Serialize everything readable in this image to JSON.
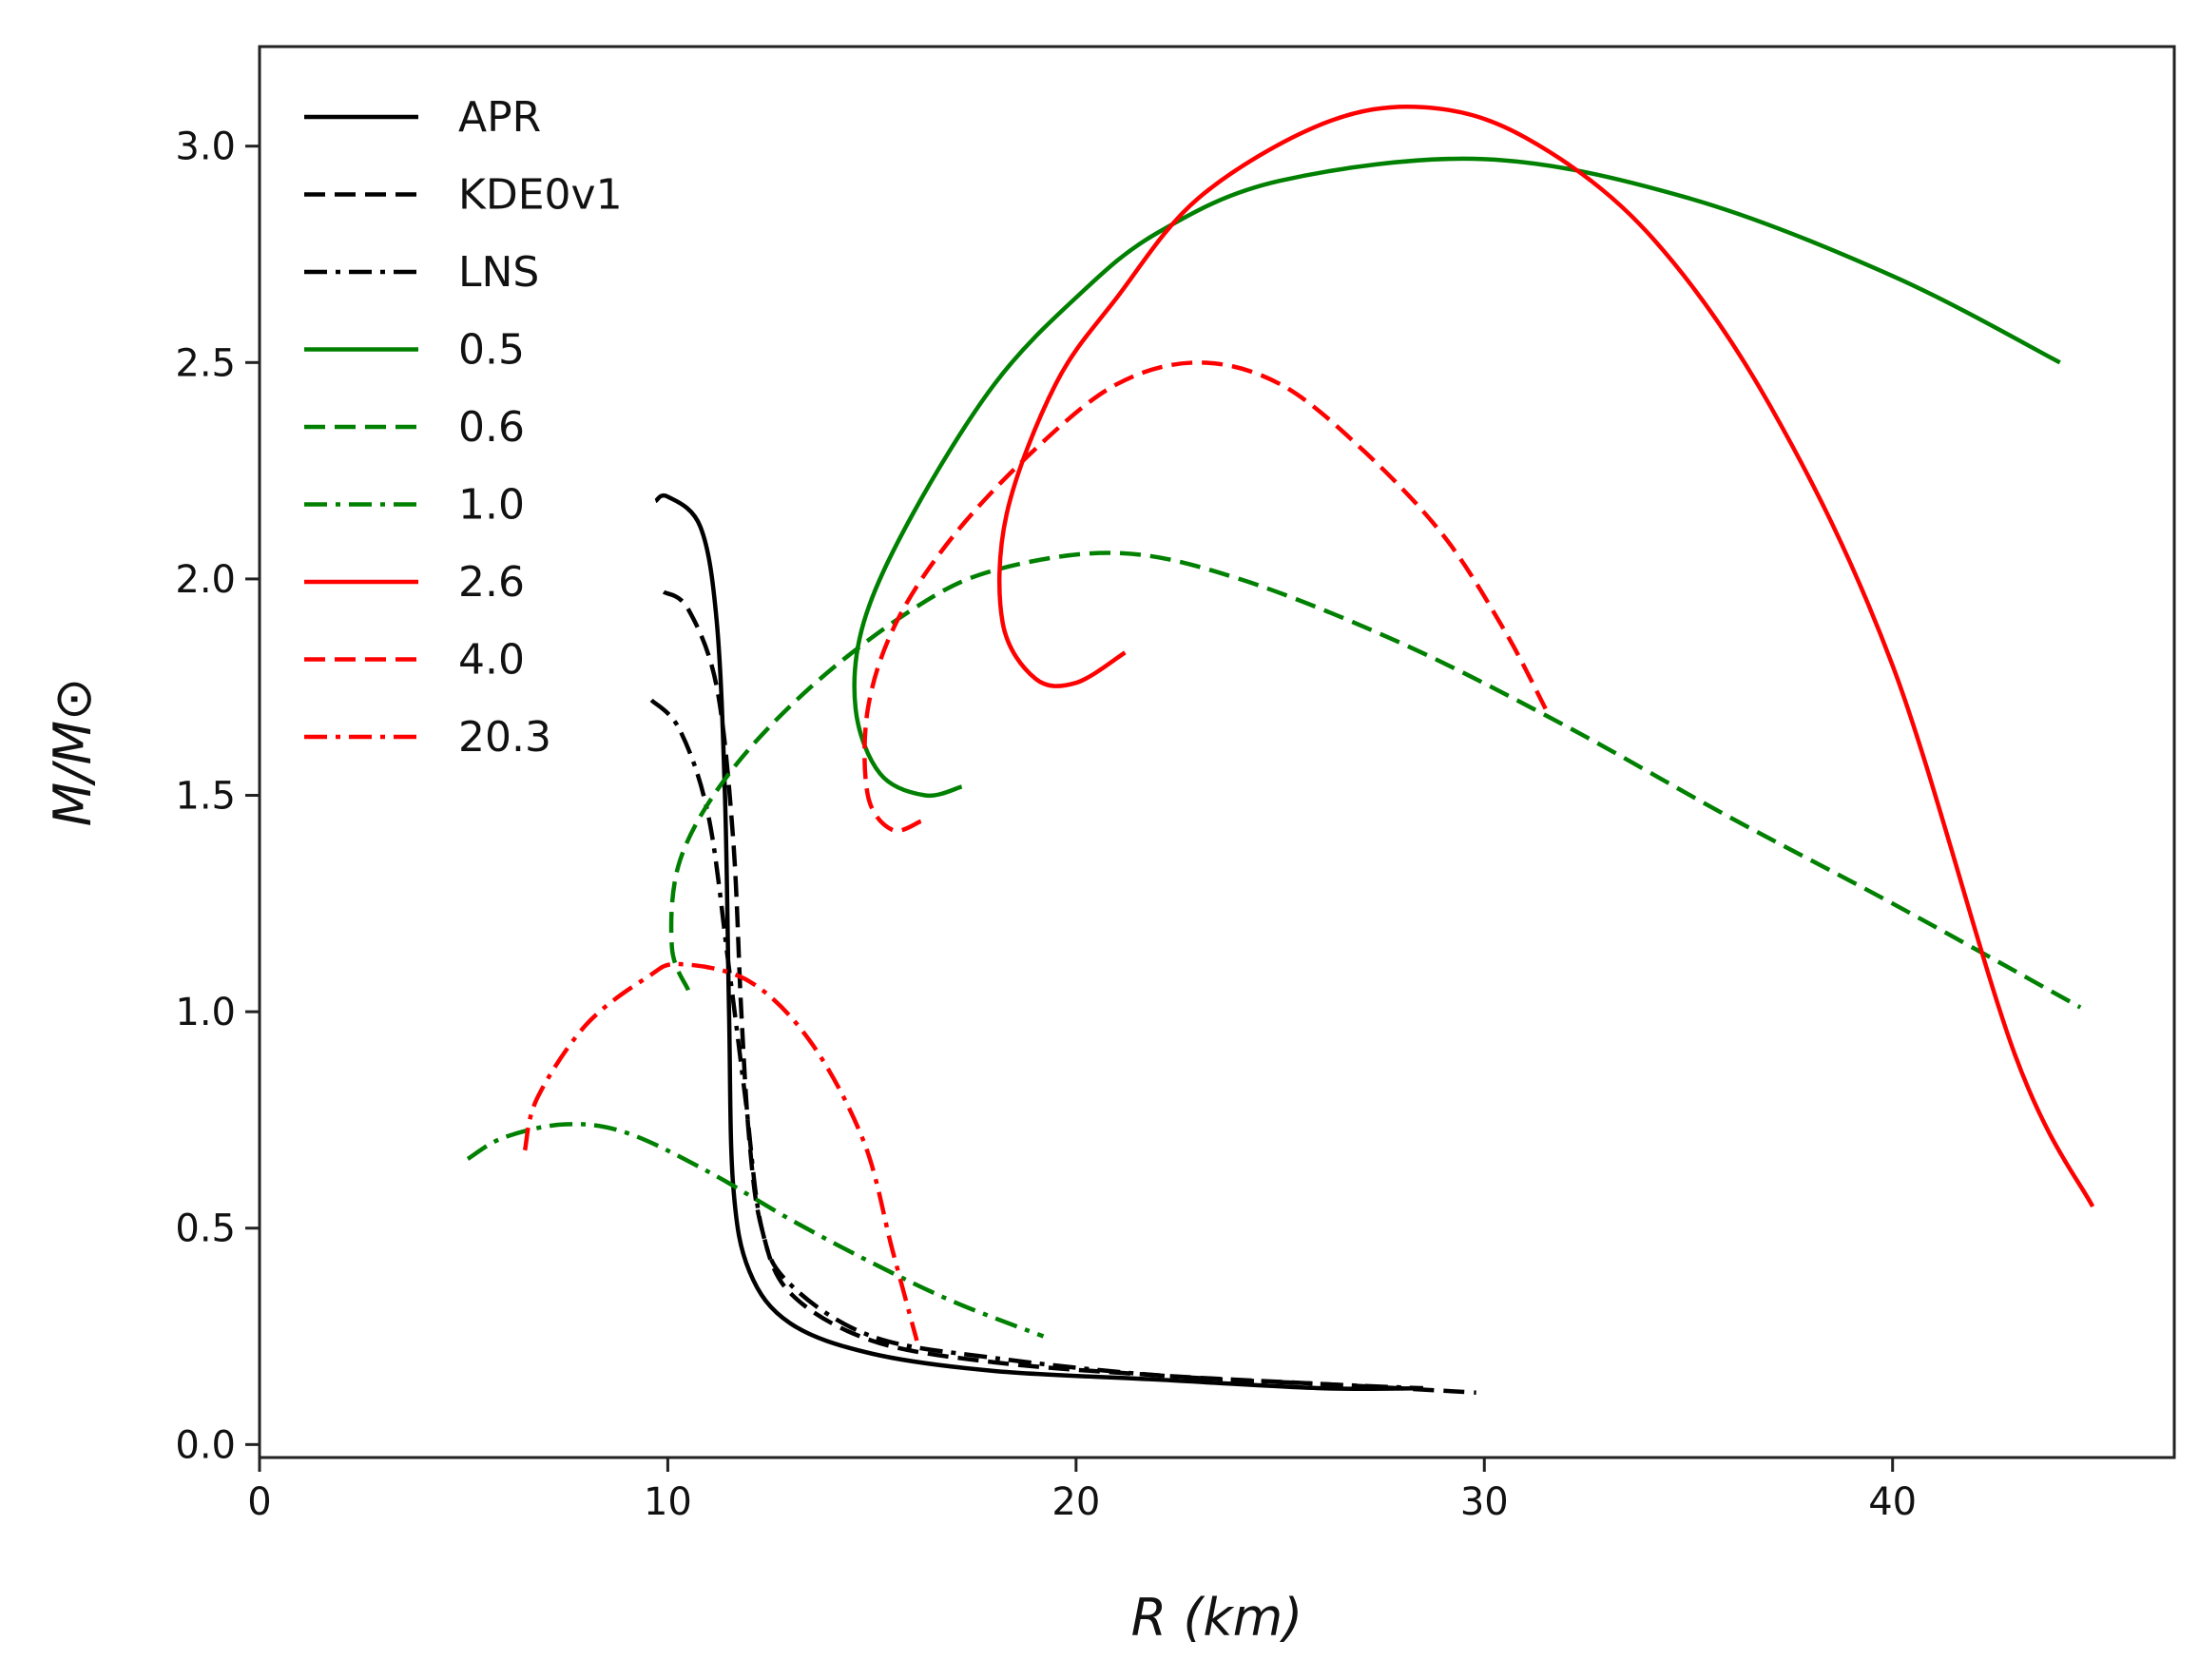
{
  "chart_data": {
    "type": "line",
    "xlabel": "R (km)",
    "ylabel": "M/M⊙",
    "xlim": [
      0,
      46.9
    ],
    "ylim": [
      -0.03,
      3.23
    ],
    "xticks": [
      0,
      10,
      20,
      30,
      40
    ],
    "yticks": [
      0.0,
      0.5,
      1.0,
      1.5,
      2.0,
      2.5,
      3.0
    ],
    "xtick_labels": [
      "0",
      "10",
      "20",
      "30",
      "40"
    ],
    "ytick_labels": [
      "0.0",
      "0.5",
      "1.0",
      "1.5",
      "2.0",
      "2.5",
      "3.0"
    ],
    "grid": false,
    "legend_position": "top-left",
    "series": [
      {
        "name": "APR",
        "color": "#000000",
        "style": "solid",
        "points": [
          [
            9.7,
            2.18
          ],
          [
            10.0,
            2.19
          ],
          [
            10.8,
            2.12
          ],
          [
            11.2,
            1.9
          ],
          [
            11.4,
            1.5
          ],
          [
            11.5,
            1.0
          ],
          [
            11.6,
            0.6
          ],
          [
            12.0,
            0.4
          ],
          [
            13,
            0.28
          ],
          [
            15,
            0.21
          ],
          [
            18,
            0.17
          ],
          [
            22,
            0.15
          ],
          [
            26,
            0.13
          ],
          [
            28.5,
            0.13
          ]
        ]
      },
      {
        "name": "KDE0v1",
        "color": "#000000",
        "style": "dashed",
        "points": [
          [
            9.9,
            1.97
          ],
          [
            10.5,
            1.93
          ],
          [
            11.2,
            1.75
          ],
          [
            11.6,
            1.4
          ],
          [
            11.8,
            1.0
          ],
          [
            12.0,
            0.7
          ],
          [
            12.3,
            0.5
          ],
          [
            13,
            0.35
          ],
          [
            15,
            0.24
          ],
          [
            18,
            0.19
          ],
          [
            22,
            0.16
          ],
          [
            26,
            0.14
          ],
          [
            29.8,
            0.12
          ]
        ]
      },
      {
        "name": "LNS",
        "color": "#000000",
        "style": "dashdot",
        "points": [
          [
            9.6,
            1.72
          ],
          [
            10.3,
            1.65
          ],
          [
            11.0,
            1.45
          ],
          [
            11.5,
            1.1
          ],
          [
            11.9,
            0.8
          ],
          [
            12.3,
            0.5
          ],
          [
            13,
            0.37
          ],
          [
            15,
            0.25
          ],
          [
            18,
            0.2
          ],
          [
            22,
            0.16
          ],
          [
            26,
            0.14
          ],
          [
            28.5,
            0.13
          ]
        ]
      },
      {
        "name": "0.5",
        "color": "#008000",
        "style": "solid",
        "points": [
          [
            17.2,
            1.52
          ],
          [
            16.3,
            1.5
          ],
          [
            15.2,
            1.55
          ],
          [
            14.6,
            1.7
          ],
          [
            14.8,
            1.9
          ],
          [
            16,
            2.15
          ],
          [
            18,
            2.45
          ],
          [
            20,
            2.65
          ],
          [
            22,
            2.8
          ],
          [
            25,
            2.92
          ],
          [
            30,
            2.97
          ],
          [
            35,
            2.88
          ],
          [
            40,
            2.7
          ],
          [
            44.1,
            2.5
          ]
        ]
      },
      {
        "name": "0.6",
        "color": "#008000",
        "style": "dashed",
        "points": [
          [
            10.5,
            1.05
          ],
          [
            10.1,
            1.15
          ],
          [
            10.3,
            1.35
          ],
          [
            11.5,
            1.55
          ],
          [
            13.5,
            1.75
          ],
          [
            16,
            1.93
          ],
          [
            18,
            2.02
          ],
          [
            21,
            2.06
          ],
          [
            24,
            2.0
          ],
          [
            28,
            1.85
          ],
          [
            32,
            1.66
          ],
          [
            36,
            1.45
          ],
          [
            40,
            1.25
          ],
          [
            44.6,
            1.01
          ]
        ]
      },
      {
        "name": "1.0",
        "color": "#008000",
        "style": "dashdot",
        "points": [
          [
            5.1,
            0.66
          ],
          [
            6,
            0.71
          ],
          [
            7.5,
            0.74
          ],
          [
            9,
            0.72
          ],
          [
            11,
            0.63
          ],
          [
            13,
            0.52
          ],
          [
            15,
            0.42
          ],
          [
            17,
            0.33
          ],
          [
            19.2,
            0.25
          ]
        ]
      },
      {
        "name": "2.6",
        "color": "#ff0000",
        "style": "solid",
        "points": [
          [
            21.2,
            1.83
          ],
          [
            20,
            1.76
          ],
          [
            19,
            1.77
          ],
          [
            18.2,
            1.9
          ],
          [
            18.3,
            2.15
          ],
          [
            19.5,
            2.45
          ],
          [
            21,
            2.65
          ],
          [
            23,
            2.88
          ],
          [
            26,
            3.05
          ],
          [
            28.5,
            3.09
          ],
          [
            31,
            3.02
          ],
          [
            34,
            2.8
          ],
          [
            37,
            2.4
          ],
          [
            40,
            1.8
          ],
          [
            43,
            0.9
          ],
          [
            44.9,
            0.55
          ]
        ]
      },
      {
        "name": "4.0",
        "color": "#ff0000",
        "style": "dashed",
        "points": [
          [
            16.2,
            1.44
          ],
          [
            15.5,
            1.42
          ],
          [
            14.9,
            1.5
          ],
          [
            14.9,
            1.7
          ],
          [
            15.6,
            1.9
          ],
          [
            17,
            2.1
          ],
          [
            19,
            2.3
          ],
          [
            21,
            2.45
          ],
          [
            23,
            2.5
          ],
          [
            25,
            2.45
          ],
          [
            27,
            2.3
          ],
          [
            29,
            2.1
          ],
          [
            30.5,
            1.88
          ],
          [
            31.5,
            1.7
          ]
        ]
      },
      {
        "name": "20.3",
        "color": "#ff0000",
        "style": "dashdot",
        "points": [
          [
            6.5,
            0.68
          ],
          [
            6.8,
            0.8
          ],
          [
            8,
            0.97
          ],
          [
            9.5,
            1.08
          ],
          [
            10.3,
            1.11
          ],
          [
            12,
            1.07
          ],
          [
            13.5,
            0.93
          ],
          [
            14.8,
            0.7
          ],
          [
            15.5,
            0.45
          ],
          [
            16.1,
            0.24
          ]
        ]
      }
    ]
  }
}
